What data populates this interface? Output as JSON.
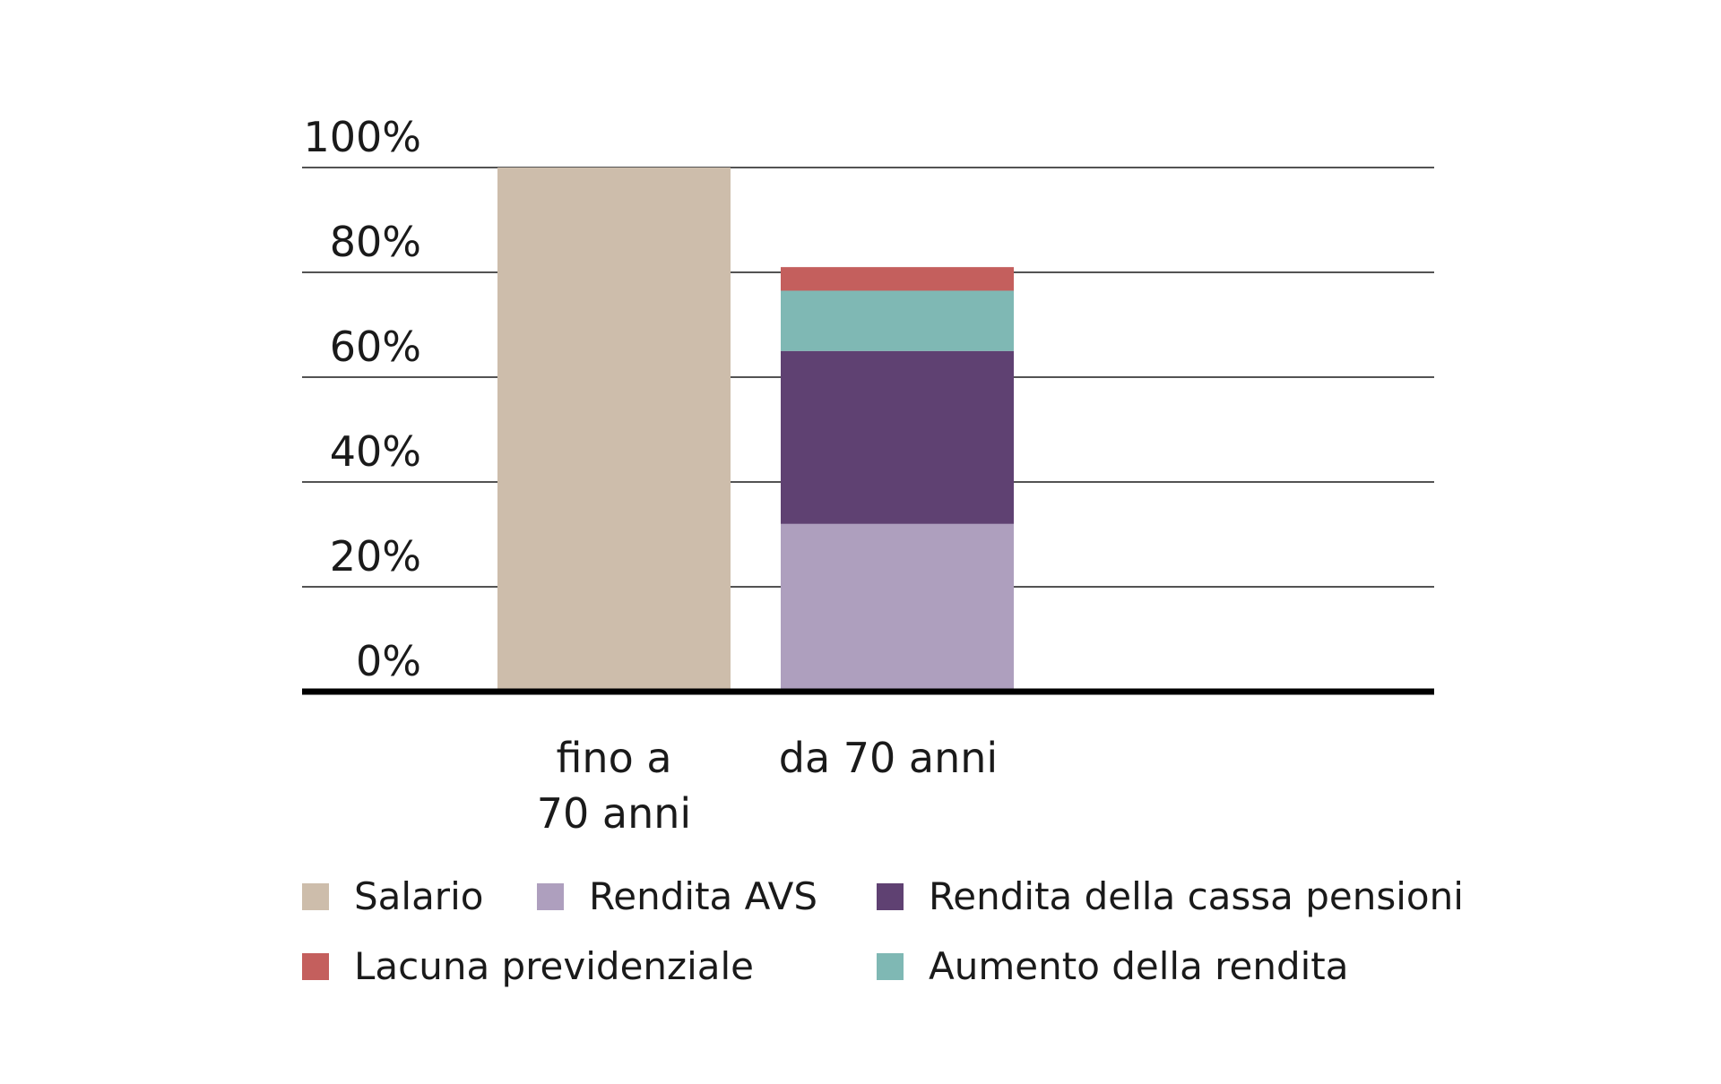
{
  "chart_data": {
    "type": "bar",
    "stacked": true,
    "title": "",
    "xlabel": "",
    "ylabel": "",
    "ylim": [
      0,
      100
    ],
    "y_ticks": [
      "0%",
      "20%",
      "40%",
      "60%",
      "80%",
      "100%"
    ],
    "y_tick_values": [
      0,
      20,
      40,
      60,
      80,
      100
    ],
    "grid": true,
    "categories": [
      [
        "fino a",
        "70 anni"
      ],
      [
        "da 70 anni"
      ]
    ],
    "series": [
      {
        "name": "Salario",
        "color": "#cdbdab",
        "values": [
          100,
          0
        ]
      },
      {
        "name": "Rendita AVS",
        "color": "#ae9fbe",
        "values": [
          0,
          32
        ]
      },
      {
        "name": "Rendita della cassa pensioni",
        "color": "#5f4172",
        "values": [
          0,
          33
        ]
      },
      {
        "name": "Aumento della rendita",
        "color": "#7fb8b4",
        "values": [
          0,
          11.5
        ]
      },
      {
        "name": "Lacuna previdenziale",
        "color": "#c45f5d",
        "values": [
          0,
          4.5
        ]
      }
    ]
  },
  "legend": {
    "items": [
      {
        "label": "Salario",
        "color": "#cdbdab"
      },
      {
        "label": "Rendita AVS",
        "color": "#ae9fbe"
      },
      {
        "label": "Rendita della cassa pensioni",
        "color": "#5f4172"
      },
      {
        "label": "Lacuna previdenziale",
        "color": "#c45f5d"
      },
      {
        "label": "Aumento della rendita",
        "color": "#7fb8b4"
      }
    ]
  }
}
